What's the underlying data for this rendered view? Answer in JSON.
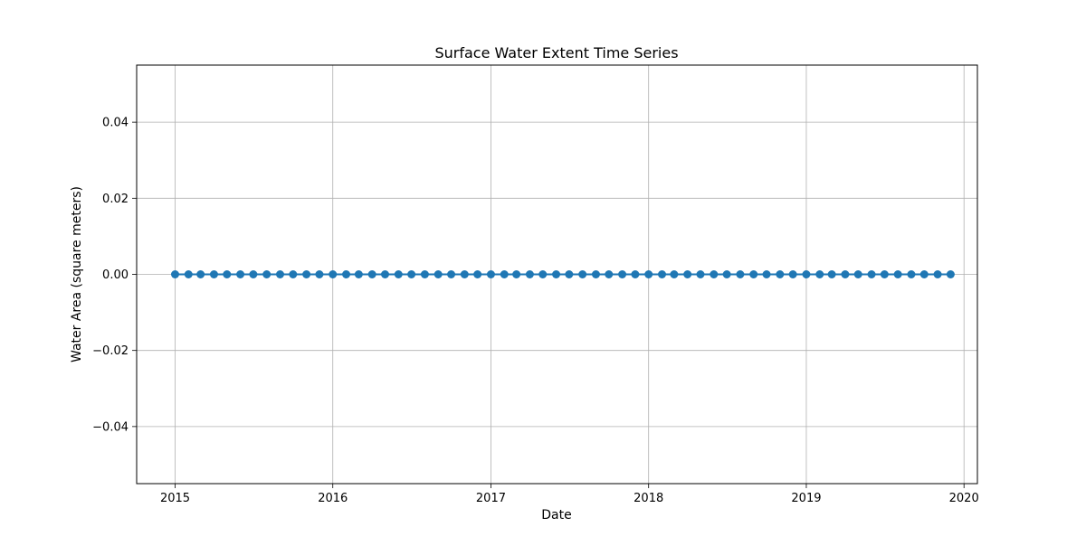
{
  "chart_data": {
    "type": "line",
    "title": "Surface Water Extent Time Series",
    "xlabel": "Date",
    "ylabel": "Water Area (square meters)",
    "xlim": [
      "2014-10-04",
      "2020-02-01"
    ],
    "ylim": [
      -0.055,
      0.055
    ],
    "x_ticks": [
      {
        "date": "2015-01-01",
        "label": "2015"
      },
      {
        "date": "2016-01-01",
        "label": "2016"
      },
      {
        "date": "2017-01-01",
        "label": "2017"
      },
      {
        "date": "2018-01-01",
        "label": "2018"
      },
      {
        "date": "2019-01-01",
        "label": "2019"
      },
      {
        "date": "2020-01-01",
        "label": "2020"
      }
    ],
    "y_ticks": [
      {
        "value": -0.04,
        "label": "−0.04"
      },
      {
        "value": -0.02,
        "label": "−0.02"
      },
      {
        "value": 0.0,
        "label": "0.00"
      },
      {
        "value": 0.02,
        "label": "0.02"
      },
      {
        "value": 0.04,
        "label": "0.04"
      }
    ],
    "grid": true,
    "legend": "none",
    "marker": "circle",
    "series": [
      {
        "color": "#1f77b4",
        "x": [
          "2015-01-01",
          "2015-02-01",
          "2015-03-01",
          "2015-04-01",
          "2015-05-01",
          "2015-06-01",
          "2015-07-01",
          "2015-08-01",
          "2015-09-01",
          "2015-10-01",
          "2015-11-01",
          "2015-12-01",
          "2016-01-01",
          "2016-02-01",
          "2016-03-01",
          "2016-04-01",
          "2016-05-01",
          "2016-06-01",
          "2016-07-01",
          "2016-08-01",
          "2016-09-01",
          "2016-10-01",
          "2016-11-01",
          "2016-12-01",
          "2017-01-01",
          "2017-02-01",
          "2017-03-01",
          "2017-04-01",
          "2017-05-01",
          "2017-06-01",
          "2017-07-01",
          "2017-08-01",
          "2017-09-01",
          "2017-10-01",
          "2017-11-01",
          "2017-12-01",
          "2018-01-01",
          "2018-02-01",
          "2018-03-01",
          "2018-04-01",
          "2018-05-01",
          "2018-06-01",
          "2018-07-01",
          "2018-08-01",
          "2018-09-01",
          "2018-10-01",
          "2018-11-01",
          "2018-12-01",
          "2019-01-01",
          "2019-02-01",
          "2019-03-01",
          "2019-04-01",
          "2019-05-01",
          "2019-06-01",
          "2019-07-01",
          "2019-08-01",
          "2019-09-01",
          "2019-10-01",
          "2019-11-01",
          "2019-12-01"
        ],
        "y": [
          0,
          0,
          0,
          0,
          0,
          0,
          0,
          0,
          0,
          0,
          0,
          0,
          0,
          0,
          0,
          0,
          0,
          0,
          0,
          0,
          0,
          0,
          0,
          0,
          0,
          0,
          0,
          0,
          0,
          0,
          0,
          0,
          0,
          0,
          0,
          0,
          0,
          0,
          0,
          0,
          0,
          0,
          0,
          0,
          0,
          0,
          0,
          0,
          0,
          0,
          0,
          0,
          0,
          0,
          0,
          0,
          0,
          0,
          0,
          0
        ]
      }
    ]
  }
}
